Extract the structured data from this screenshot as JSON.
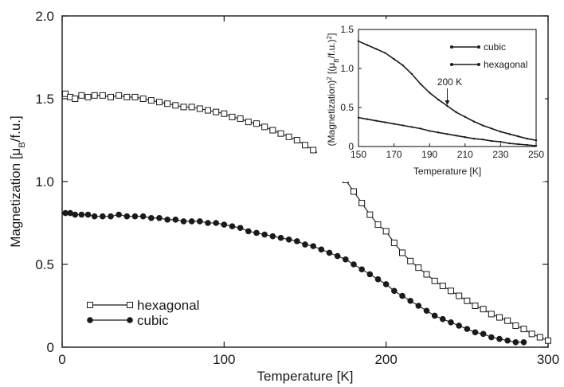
{
  "chart_data": [
    {
      "type": "line",
      "xlabel": "Temperature [K]",
      "ylabel": "Magnetization [μB/f.u.]",
      "xlim": [
        0,
        300
      ],
      "ylim": [
        0,
        2.0
      ],
      "x_ticks": [
        "0",
        "100",
        "200",
        "300"
      ],
      "y_ticks": [
        "0",
        "0.5",
        "1.0",
        "1.5",
        "2.0"
      ],
      "grid": false,
      "legend_position": "bottom-left",
      "series": [
        {
          "name": "hexagonal",
          "marker": "open-square",
          "color": "#1a1a1a",
          "points": [
            [
              2,
              1.53
            ],
            [
              5,
              1.51
            ],
            [
              8,
              1.5
            ],
            [
              12,
              1.52
            ],
            [
              16,
              1.51
            ],
            [
              20,
              1.52
            ],
            [
              25,
              1.52
            ],
            [
              30,
              1.51
            ],
            [
              35,
              1.52
            ],
            [
              40,
              1.51
            ],
            [
              45,
              1.51
            ],
            [
              50,
              1.5
            ],
            [
              55,
              1.49
            ],
            [
              60,
              1.48
            ],
            [
              65,
              1.47
            ],
            [
              70,
              1.46
            ],
            [
              75,
              1.45
            ],
            [
              80,
              1.45
            ],
            [
              85,
              1.44
            ],
            [
              90,
              1.43
            ],
            [
              95,
              1.42
            ],
            [
              100,
              1.41
            ],
            [
              105,
              1.39
            ],
            [
              110,
              1.38
            ],
            [
              115,
              1.36
            ],
            [
              120,
              1.35
            ],
            [
              125,
              1.33
            ],
            [
              130,
              1.31
            ],
            [
              135,
              1.29
            ],
            [
              140,
              1.27
            ],
            [
              145,
              1.25
            ],
            [
              150,
              1.22
            ],
            [
              155,
              1.19
            ],
            [
              160,
              1.16
            ],
            [
              165,
              1.12
            ],
            [
              170,
              1.07
            ],
            [
              175,
              1.01
            ],
            [
              180,
              0.94
            ],
            [
              185,
              0.87
            ],
            [
              190,
              0.8
            ],
            [
              195,
              0.74
            ],
            [
              200,
              0.7
            ],
            [
              205,
              0.63
            ],
            [
              210,
              0.57
            ],
            [
              215,
              0.52
            ],
            [
              220,
              0.48
            ],
            [
              225,
              0.44
            ],
            [
              230,
              0.4
            ],
            [
              235,
              0.37
            ],
            [
              240,
              0.34
            ],
            [
              245,
              0.31
            ],
            [
              250,
              0.28
            ],
            [
              255,
              0.25
            ],
            [
              260,
              0.23
            ],
            [
              265,
              0.2
            ],
            [
              270,
              0.18
            ],
            [
              275,
              0.16
            ],
            [
              280,
              0.13
            ],
            [
              285,
              0.11
            ],
            [
              290,
              0.08
            ],
            [
              295,
              0.06
            ],
            [
              300,
              0.04
            ]
          ]
        },
        {
          "name": "cubic",
          "marker": "filled-circle",
          "color": "#1a1a1a",
          "points": [
            [
              2,
              0.81
            ],
            [
              5,
              0.81
            ],
            [
              8,
              0.8
            ],
            [
              12,
              0.8
            ],
            [
              16,
              0.8
            ],
            [
              20,
              0.79
            ],
            [
              25,
              0.79
            ],
            [
              30,
              0.79
            ],
            [
              35,
              0.8
            ],
            [
              40,
              0.79
            ],
            [
              45,
              0.79
            ],
            [
              50,
              0.79
            ],
            [
              55,
              0.78
            ],
            [
              60,
              0.78
            ],
            [
              65,
              0.77
            ],
            [
              70,
              0.77
            ],
            [
              75,
              0.76
            ],
            [
              80,
              0.76
            ],
            [
              85,
              0.76
            ],
            [
              90,
              0.75
            ],
            [
              95,
              0.75
            ],
            [
              100,
              0.74
            ],
            [
              105,
              0.73
            ],
            [
              110,
              0.72
            ],
            [
              115,
              0.7
            ],
            [
              120,
              0.69
            ],
            [
              125,
              0.68
            ],
            [
              130,
              0.67
            ],
            [
              135,
              0.66
            ],
            [
              140,
              0.65
            ],
            [
              145,
              0.64
            ],
            [
              150,
              0.62
            ],
            [
              155,
              0.61
            ],
            [
              160,
              0.59
            ],
            [
              165,
              0.57
            ],
            [
              170,
              0.55
            ],
            [
              175,
              0.53
            ],
            [
              180,
              0.5
            ],
            [
              185,
              0.47
            ],
            [
              190,
              0.44
            ],
            [
              195,
              0.41
            ],
            [
              200,
              0.38
            ],
            [
              205,
              0.34
            ],
            [
              210,
              0.31
            ],
            [
              215,
              0.28
            ],
            [
              220,
              0.25
            ],
            [
              225,
              0.22
            ],
            [
              230,
              0.19
            ],
            [
              235,
              0.17
            ],
            [
              240,
              0.15
            ],
            [
              245,
              0.13
            ],
            [
              250,
              0.11
            ],
            [
              255,
              0.09
            ],
            [
              260,
              0.08
            ],
            [
              265,
              0.06
            ],
            [
              270,
              0.05
            ],
            [
              275,
              0.04
            ],
            [
              280,
              0.03
            ],
            [
              285,
              0.03
            ]
          ]
        }
      ]
    },
    {
      "type": "line",
      "xlabel": "Temperature [K]",
      "ylabel": "(Magnetization)² [(μB/f.u.)²]",
      "xlim": [
        150,
        250
      ],
      "ylim": [
        0,
        1.5
      ],
      "x_ticks": [
        "150",
        "170",
        "190",
        "210",
        "230",
        "250"
      ],
      "y_ticks": [
        "0",
        "0.5",
        "1.0",
        "1.5"
      ],
      "grid": false,
      "legend_position": "top-right",
      "annotation": {
        "text": "200 K",
        "x": 200,
        "y": 0.5
      },
      "series": [
        {
          "name": "cubic",
          "color": "#1a1a1a",
          "points": [
            [
              150,
              0.37
            ],
            [
              155,
              0.35
            ],
            [
              160,
              0.33
            ],
            [
              165,
              0.31
            ],
            [
              170,
              0.29
            ],
            [
              175,
              0.27
            ],
            [
              180,
              0.25
            ],
            [
              185,
              0.23
            ],
            [
              190,
              0.2
            ],
            [
              195,
              0.18
            ],
            [
              200,
              0.16
            ],
            [
              205,
              0.14
            ],
            [
              210,
              0.12
            ],
            [
              215,
              0.1
            ],
            [
              220,
              0.09
            ],
            [
              225,
              0.07
            ],
            [
              230,
              0.06
            ],
            [
              235,
              0.04
            ],
            [
              240,
              0.03
            ],
            [
              245,
              0.02
            ],
            [
              250,
              0.01
            ]
          ]
        },
        {
          "name": "hexagonal",
          "color": "#1a1a1a",
          "points": [
            [
              150,
              1.35
            ],
            [
              155,
              1.3
            ],
            [
              160,
              1.25
            ],
            [
              165,
              1.2
            ],
            [
              170,
              1.12
            ],
            [
              175,
              1.04
            ],
            [
              180,
              0.93
            ],
            [
              185,
              0.8
            ],
            [
              190,
              0.69
            ],
            [
              195,
              0.6
            ],
            [
              200,
              0.52
            ],
            [
              205,
              0.44
            ],
            [
              210,
              0.38
            ],
            [
              215,
              0.32
            ],
            [
              220,
              0.27
            ],
            [
              225,
              0.23
            ],
            [
              230,
              0.19
            ],
            [
              235,
              0.16
            ],
            [
              240,
              0.13
            ],
            [
              245,
              0.1
            ],
            [
              250,
              0.08
            ]
          ]
        }
      ]
    }
  ]
}
